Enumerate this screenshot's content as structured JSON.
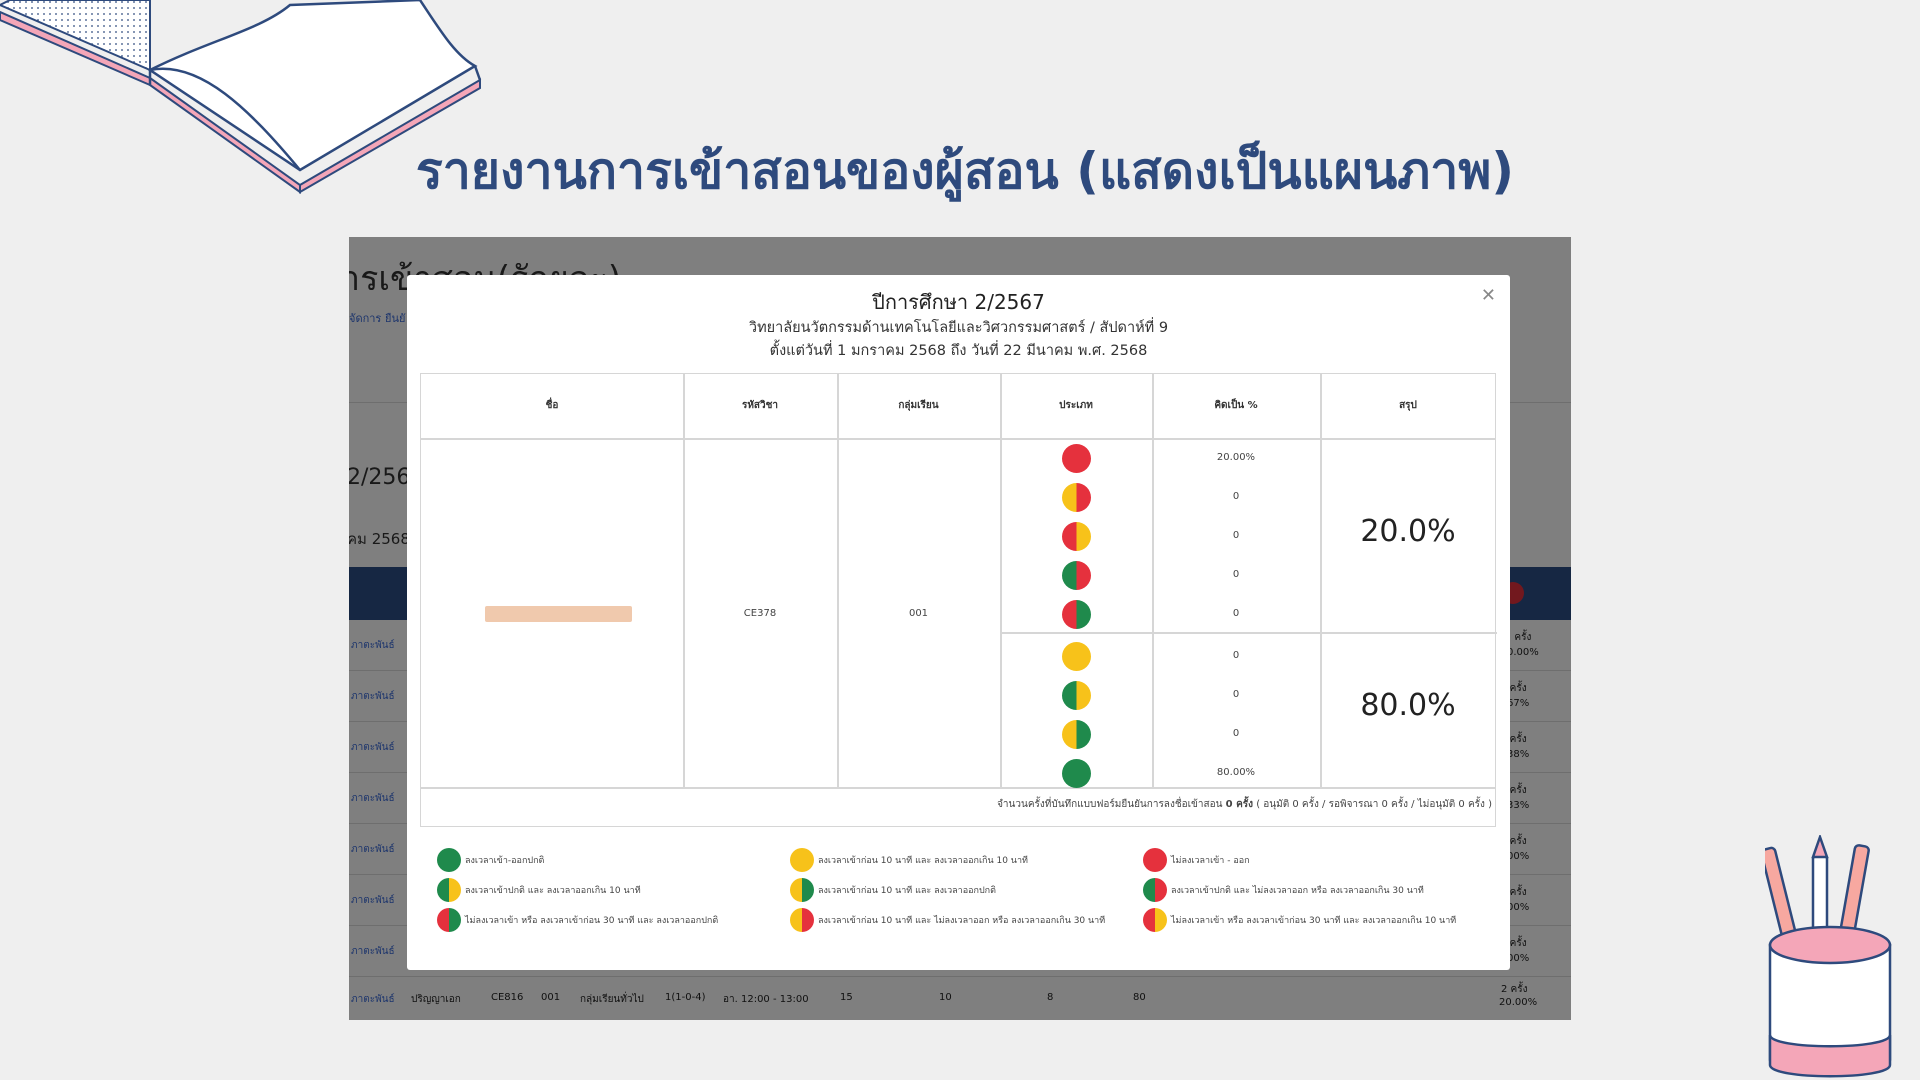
{
  "slide": {
    "title": "รายงานการเข้าสอนของผู้สอน (แสดงเป็นแผนภาพ)"
  },
  "colors": {
    "title": "#2e4a7d",
    "green": "#1f8a4c",
    "yellow": "#f7c21a",
    "red": "#e5313d",
    "table_header_bg": "#2c4f86"
  },
  "background_page": {
    "heading": "ารเข้าสอน(รักยละ)",
    "breadcrumb": [
      "จัดการ",
      "ยืนยั"
    ],
    "year_fragment": "2/256",
    "date_fragment": "คม 2568",
    "row_links": [
      "ภาตะพันธ์",
      "ภาตะพันธ์",
      "ภาตะพันธ์",
      "ภาตะพันธ์",
      "ภาตะพันธ์",
      "ภาตะพันธ์",
      "ภาตะพันธ์"
    ],
    "row_counts": [
      {
        "count": "ครั้ง",
        "pct": "0.00%"
      },
      {
        "count": "ครั้ง",
        "pct": "67%"
      },
      {
        "count": "ครั้ง",
        "pct": "38%"
      },
      {
        "count": "ครั้ง",
        "pct": "33%"
      },
      {
        "count": "ครั้ง",
        "pct": "00%"
      },
      {
        "count": "ครั้ง",
        "pct": "00%"
      },
      {
        "count": "ครั้ง",
        "pct": "00%"
      }
    ],
    "last_row": {
      "link": "ภาตะพันธ์",
      "level": "ปริญญาเอก",
      "code": "CE816",
      "group": "001",
      "group_type": "กลุ่มเรียนทั่วไป",
      "credits": "1(1-0-4)",
      "time": "อา. 12:00 - 13:00",
      "n1": "15",
      "n2": "10",
      "n3": "8",
      "n4": "80",
      "count": "2 ครั้ง",
      "pct": "20.00%"
    }
  },
  "modal": {
    "title": "ปีการศึกษา 2/2567",
    "subtitle": "วิทยาลัยนวัตกรรมด้านเทคโนโลยีและวิศวกรรมศาสตร์ / สัปดาห์ที่ 9",
    "date_range": "ตั้งแต่วันที่ 1 มกราคม 2568 ถึง วันที่ 22 มีนาคม พ.ศ. 2568",
    "close_icon": "close-icon",
    "table": {
      "headers": [
        "ชื่อ",
        "รหัสวิชา",
        "กลุ่มเรียน",
        "ประเภท",
        "คิดเป็น %",
        "สรุป"
      ],
      "course_code": "CE378",
      "group": "001",
      "types": [
        {
          "left": "red",
          "right": "red",
          "pct": "20.00%"
        },
        {
          "left": "yellow",
          "right": "red",
          "pct": "0"
        },
        {
          "left": "red",
          "right": "yellow",
          "pct": "0"
        },
        {
          "left": "green",
          "right": "red",
          "pct": "0"
        },
        {
          "left": "red",
          "right": "green",
          "pct": "0"
        },
        {
          "left": "yellow",
          "right": "yellow",
          "pct": "0"
        },
        {
          "left": "green",
          "right": "yellow",
          "pct": "0"
        },
        {
          "left": "yellow",
          "right": "green",
          "pct": "0"
        },
        {
          "left": "green",
          "right": "green",
          "pct": "80.00%"
        }
      ],
      "summary_top": "20.0%",
      "summary_bottom": "80.0%",
      "note_prefix": "จำนวนครั้งที่บันทึกแบบฟอร์มยืนยันการลงชื่อเข้าสอน",
      "note_count": "0 ครั้ง",
      "note_suffix": "( อนุมัติ 0 ครั้ง / รอพิจารณา 0 ครั้ง / ไม่อนุมัติ 0 ครั้ง )"
    },
    "legend": [
      {
        "left": "green",
        "right": "green",
        "text": "ลงเวลาเข้า-ออกปกติ"
      },
      {
        "left": "yellow",
        "right": "yellow",
        "text": "ลงเวลาเข้าก่อน 10 นาที และ ลงเวลาออกเกิน 10 นาที"
      },
      {
        "left": "red",
        "right": "red",
        "text": "ไม่ลงเวลาเข้า - ออก"
      },
      {
        "left": "green",
        "right": "yellow",
        "text": "ลงเวลาเข้าปกติ และ ลงเวลาออกเกิน 10 นาที"
      },
      {
        "left": "yellow",
        "right": "green",
        "text": "ลงเวลาเข้าก่อน 10 นาที และ ลงเวลาออกปกติ"
      },
      {
        "left": "green",
        "right": "red",
        "text": "ลงเวลาเข้าปกติ และ ไม่ลงเวลาออก หรือ ลงเวลาออกเกิน 30 นาที"
      },
      {
        "left": "red",
        "right": "green",
        "text": "ไม่ลงเวลาเข้า หรือ ลงเวลาเข้าก่อน 30 นาที และ ลงเวลาออกปกติ"
      },
      {
        "left": "yellow",
        "right": "red",
        "text": "ลงเวลาเข้าก่อน 10 นาที และ ไม่ลงเวลาออก หรือ ลงเวลาออกเกิน 30 นาที"
      },
      {
        "left": "red",
        "right": "yellow",
        "text": "ไม่ลงเวลาเข้า หรือ ลงเวลาเข้าก่อน 30 นาที และ ลงเวลาออกเกิน 10 นาที"
      }
    ]
  }
}
